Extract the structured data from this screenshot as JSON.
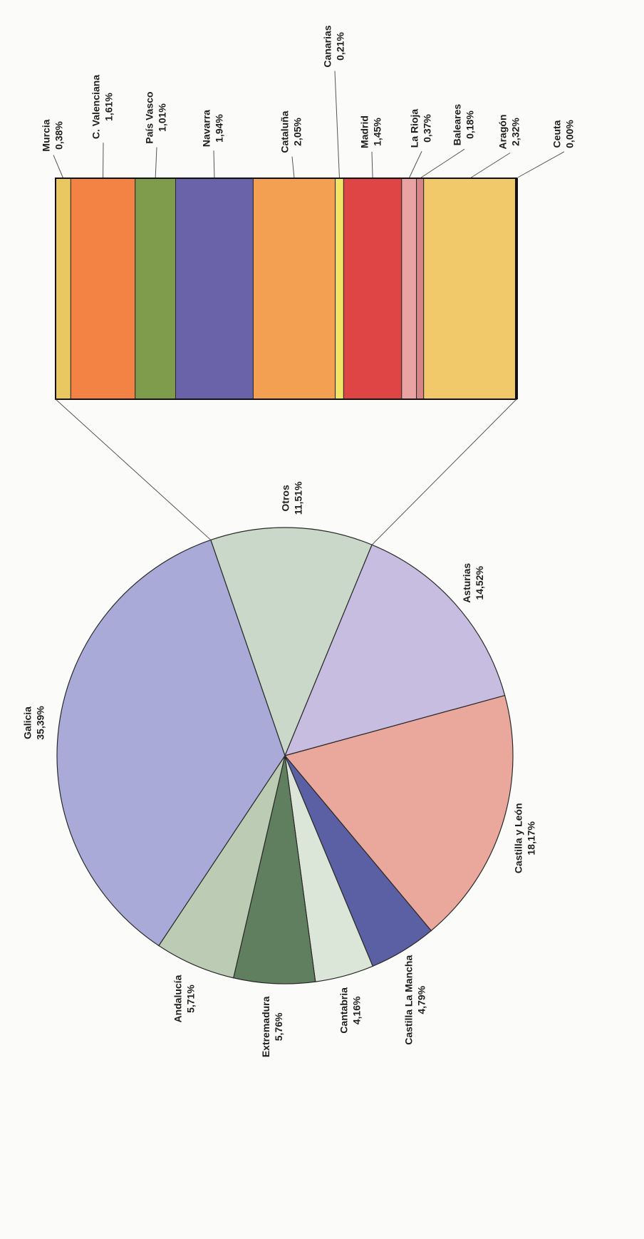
{
  "chart_data": {
    "type": "pie",
    "categories": [
      "Otros",
      "Asturias",
      "Castilla y León",
      "Castilla La Mancha",
      "Cantabria",
      "Extremadura",
      "Andalucía",
      "Galicia"
    ],
    "values": [
      11.51,
      14.52,
      18.17,
      4.79,
      4.16,
      5.76,
      5.71,
      35.39
    ],
    "value_labels": [
      "11,51%",
      "14,52%",
      "18,17%",
      "4,79%",
      "4,16%",
      "5,76%",
      "5,71%",
      "35,39%"
    ],
    "colors": [
      "#c9d8c8",
      "#c7bde0",
      "#eaa79c",
      "#5b5fa3",
      "#dce6d8",
      "#5f7f5f",
      "#bccbb4",
      "#aaaad8"
    ],
    "breakdown": {
      "type": "bar",
      "categories": [
        "Murcia",
        "C. Valenciana",
        "País Vasco",
        "Navarra",
        "Cataluña",
        "Canarias",
        "Madrid",
        "La Rioja",
        "Baleares",
        "Aragón",
        "Ceuta"
      ],
      "values": [
        0.38,
        1.61,
        1.01,
        1.94,
        2.05,
        0.21,
        1.45,
        0.37,
        0.18,
        2.32,
        0.0
      ],
      "value_labels": [
        "0,38%",
        "1,61%",
        "1,01%",
        "1,94%",
        "2,05%",
        "0,21%",
        "1,45%",
        "0,37%",
        "0,18%",
        "2,32%",
        "0,00%"
      ],
      "colors": [
        "#e9c862",
        "#f28344",
        "#7f9b4c",
        "#6a63a9",
        "#f3a052",
        "#f2e466",
        "#e04545",
        "#eaa3a3",
        "#d58585",
        "#f1c86a",
        "#222222"
      ]
    }
  }
}
